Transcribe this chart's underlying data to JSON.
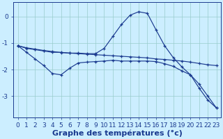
{
  "xlabel": "Graphe des températures (°c)",
  "hours": [
    0,
    1,
    2,
    3,
    4,
    5,
    6,
    7,
    8,
    9,
    10,
    11,
    12,
    13,
    14,
    15,
    16,
    17,
    18,
    19,
    20,
    21,
    22,
    23
  ],
  "curve_main": [
    -1.1,
    -1.2,
    -1.25,
    -1.3,
    -1.35,
    -1.35,
    -1.38,
    -1.38,
    -1.4,
    -1.4,
    -1.2,
    -0.75,
    -0.3,
    0.05,
    0.18,
    0.12,
    -0.5,
    -1.1,
    -1.55,
    -1.9,
    -2.2,
    -2.7,
    -3.15,
    -3.45
  ],
  "curve_flat": [
    -1.1,
    -1.18,
    -1.23,
    -1.28,
    -1.32,
    -1.36,
    -1.38,
    -1.4,
    -1.42,
    -1.44,
    -1.46,
    -1.48,
    -1.5,
    -1.52,
    -1.54,
    -1.56,
    -1.6,
    -1.62,
    -1.65,
    -1.68,
    -1.72,
    -1.77,
    -1.82,
    -1.85
  ],
  "curve_zigzag": [
    -1.1,
    -1.35,
    -1.6,
    -1.85,
    -2.15,
    -2.2,
    -1.95,
    -1.75,
    -1.72,
    -1.7,
    -1.68,
    -1.65,
    -1.68,
    -1.68,
    -1.68,
    -1.68,
    -1.7,
    -1.78,
    -1.88,
    -2.05,
    -2.2,
    -2.55,
    -3.0,
    -3.45
  ],
  "line_color": "#1a3a8f",
  "bg_color": "#cceeff",
  "grid_color": "#99cccc",
  "ylim": [
    -3.8,
    0.55
  ],
  "yticks": [
    0,
    -1,
    -2,
    -3
  ],
  "xlabel_fontsize": 8,
  "tick_fontsize": 6.5
}
